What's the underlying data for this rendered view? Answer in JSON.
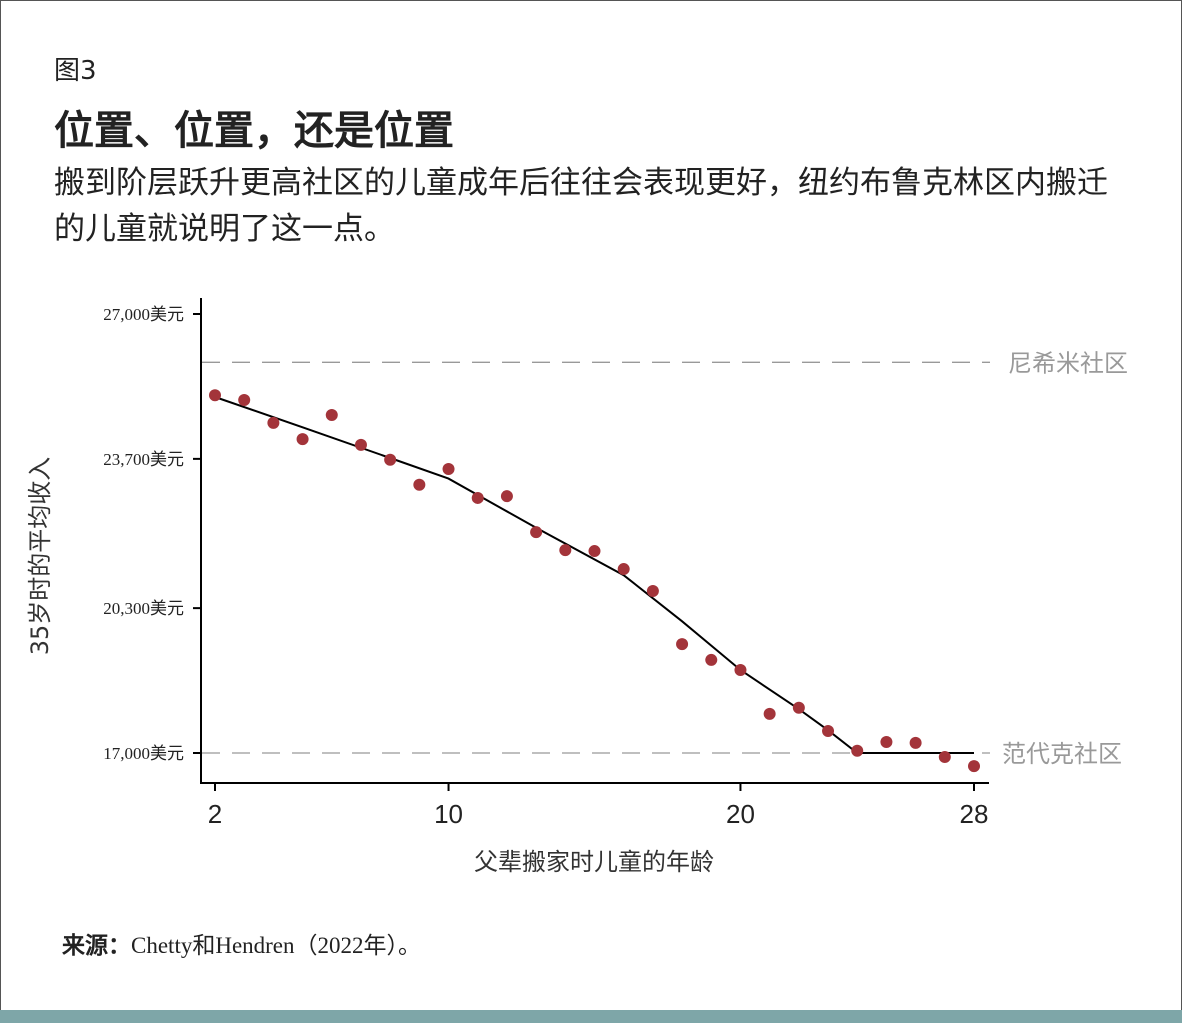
{
  "header": {
    "figure_label": "图3",
    "title": "位置、位置，还是位置",
    "subtitle": "搬到阶层跃升更高社区的儿童成年后往往会表现更好，纽约布鲁克林区内搬迁的儿童就说明了这一点。"
  },
  "source": {
    "label": "来源：",
    "text": "Chetty和Hendren（2022年）。"
  },
  "colors": {
    "points": "#a3343a",
    "fit_line": "#000000",
    "reference_lines": "#999999",
    "bottom_bar": "#7ea6a8"
  },
  "chart_data": {
    "type": "scatter",
    "xlabel": "父辈搬家时儿童的年龄",
    "ylabel": "35岁时的平均收入",
    "xlim": [
      2,
      28
    ],
    "ylim": [
      17000,
      27000
    ],
    "x_ticks": [
      2,
      10,
      20,
      28
    ],
    "x_tick_labels": [
      "2",
      "10",
      "20",
      "28"
    ],
    "y_ticks": [
      17000,
      20300,
      23700,
      27000
    ],
    "y_tick_labels": [
      "17,000美元",
      "20,300美元",
      "23,700美元",
      "27,000美元"
    ],
    "grid": false,
    "points": {
      "x": [
        2,
        3,
        4,
        5,
        6,
        7,
        8,
        9,
        10,
        11,
        12,
        13,
        14,
        15,
        16,
        17,
        18,
        19,
        20,
        21,
        22,
        23,
        24,
        25,
        26,
        27,
        28
      ],
      "y": [
        25150,
        25040,
        24520,
        24150,
        24700,
        24020,
        23680,
        23110,
        23470,
        22810,
        22850,
        22030,
        21620,
        21600,
        21190,
        20690,
        19480,
        19120,
        18890,
        17890,
        18030,
        17500,
        17050,
        17250,
        17230,
        16910,
        16700
      ]
    },
    "fit_line": {
      "x": [
        2,
        5,
        8,
        10,
        13,
        16,
        18,
        20,
        22,
        23,
        24,
        28
      ],
      "y": [
        25110,
        24420,
        23720,
        23250,
        22130,
        21050,
        20000,
        18890,
        18000,
        17520,
        17000,
        17000
      ]
    },
    "reference_lines": [
      {
        "label": "尼希米社区",
        "y": 25900
      },
      {
        "label": "范代克社区",
        "y": 17000
      }
    ]
  }
}
